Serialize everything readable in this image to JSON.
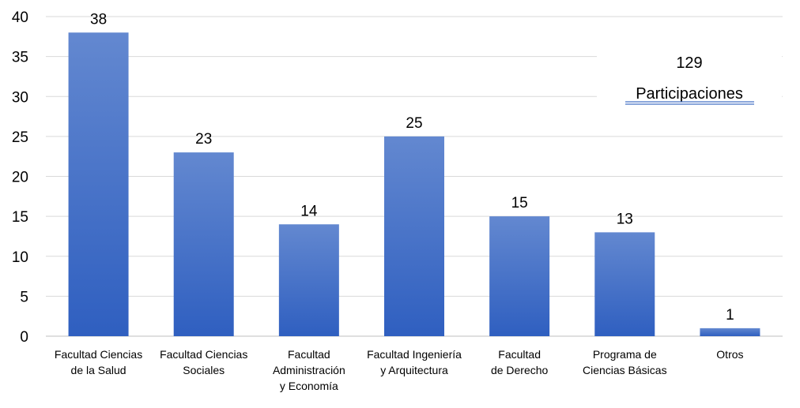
{
  "chart_data": {
    "type": "bar",
    "title": "",
    "xlabel": "",
    "ylabel": "",
    "categories": [
      [
        "Facultad Ciencias",
        "de la Salud"
      ],
      [
        "Facultad Ciencias",
        "Sociales"
      ],
      [
        "Facultad",
        "Administración",
        "y Economía"
      ],
      [
        "Facultad Ingeniería",
        "y Arquitectura"
      ],
      [
        "Facultad",
        "de Derecho"
      ],
      [
        "Programa de",
        "Ciencias Básicas"
      ],
      [
        "Otros"
      ]
    ],
    "values": [
      38,
      23,
      14,
      25,
      15,
      13,
      1
    ],
    "ylim": [
      0,
      40
    ],
    "yticks": [
      0,
      5,
      10,
      15,
      20,
      25,
      30,
      35,
      40
    ],
    "grid": true,
    "legend": "none",
    "bar_color_top": "#6388d0",
    "bar_color_bottom": "#2f5fc0",
    "annotation": {
      "total": "129",
      "label": "Participaciones",
      "underline_color": "#4472c4"
    }
  }
}
